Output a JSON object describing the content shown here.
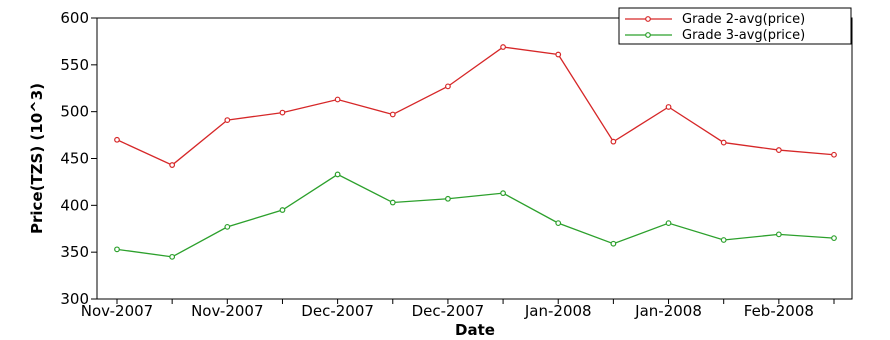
{
  "chart_data": {
    "type": "line",
    "xlabel": "Date",
    "ylabel": "Price(TZS) (10^3)",
    "ylim": [
      300,
      600
    ],
    "yticks": [
      300,
      350,
      400,
      450,
      500,
      550,
      600
    ],
    "x_tick_labels": [
      "Nov-2007",
      "Nov-2007",
      "Dec-2007",
      "Dec-2007",
      "Jan-2008",
      "Jan-2008",
      "Feb-2008"
    ],
    "grid": false,
    "legend_position": "top-right",
    "series": [
      {
        "name": "Grade 2-avg(price)",
        "color": "#d62728",
        "values": [
          470,
          443,
          491,
          499,
          513,
          497,
          527,
          569,
          561,
          468,
          505,
          467,
          459,
          454
        ]
      },
      {
        "name": "Grade 3-avg(price)",
        "color": "#2ca02c",
        "values": [
          353,
          345,
          377,
          395,
          433,
          403,
          407,
          413,
          381,
          359,
          381,
          363,
          369,
          365
        ]
      }
    ]
  }
}
